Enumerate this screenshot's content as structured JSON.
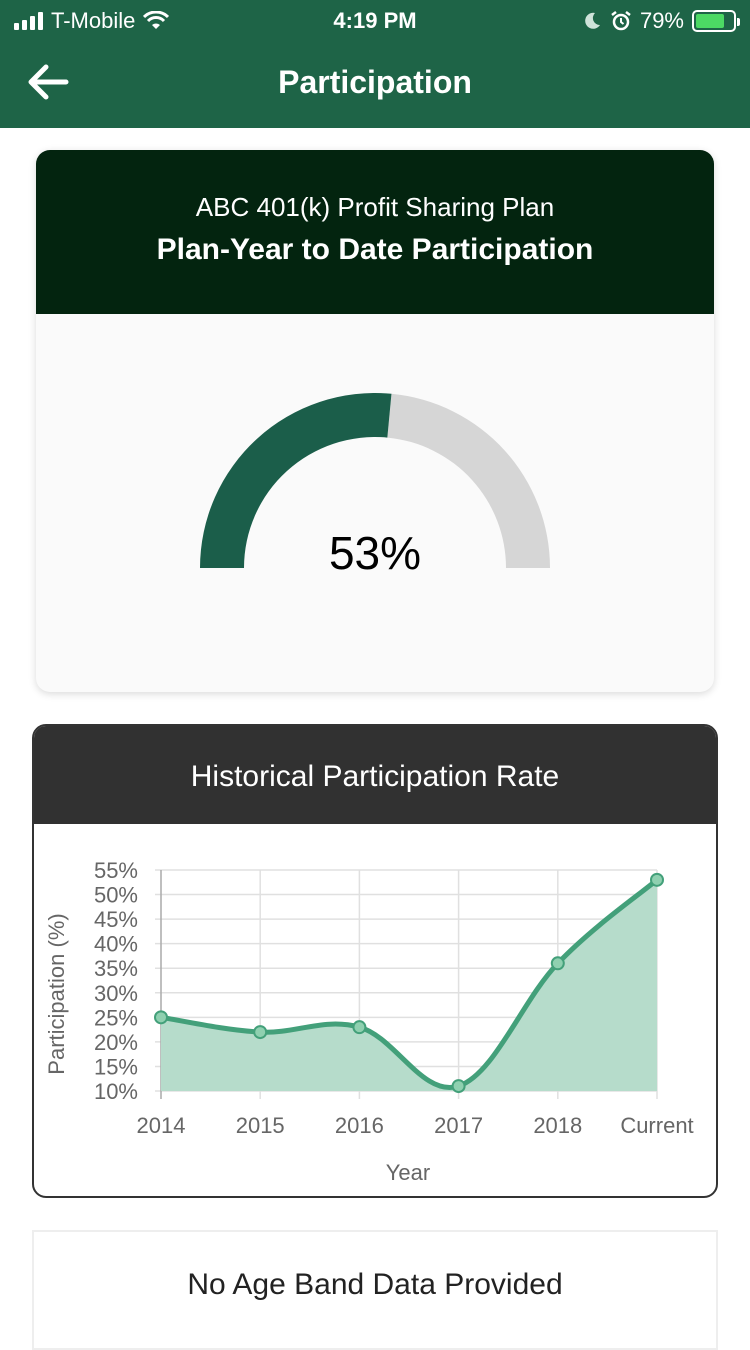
{
  "status_bar": {
    "carrier": "T-Mobile",
    "time": "4:19 PM",
    "battery": "79%",
    "icons": [
      "signal-icon",
      "wifi-icon",
      "moon-icon",
      "alarm-icon",
      "battery-icon"
    ]
  },
  "nav": {
    "title": "Participation",
    "back_icon": "arrow-left-icon"
  },
  "plan_card": {
    "plan_name": "ABC 401(k) Profit Sharing Plan",
    "title": "Plan-Year to Date Participation",
    "gauge_value": 53,
    "gauge_label": "53%",
    "colors": {
      "fill": "#1b5e4a",
      "track": "#d6d6d6",
      "header": "#03240f"
    }
  },
  "history_card": {
    "title": "Historical Participation Rate"
  },
  "chart_data": {
    "type": "area",
    "title": "Historical Participation Rate",
    "xlabel": "Year",
    "ylabel": "Participation (%)",
    "categories": [
      "2014",
      "2015",
      "2016",
      "2017",
      "2018",
      "Current"
    ],
    "values": [
      25,
      22,
      23,
      11,
      36,
      53
    ],
    "ylim": [
      10,
      55
    ],
    "yticks": [
      "55%",
      "50%",
      "45%",
      "40%",
      "35%",
      "30%",
      "25%",
      "20%",
      "15%",
      "10%"
    ],
    "grid": true,
    "colors": {
      "line": "#43a07a",
      "fill": "#b6dccb",
      "point": "#8fd0b0"
    }
  },
  "age_band_card": {
    "message": "No Age Band Data Provided"
  }
}
